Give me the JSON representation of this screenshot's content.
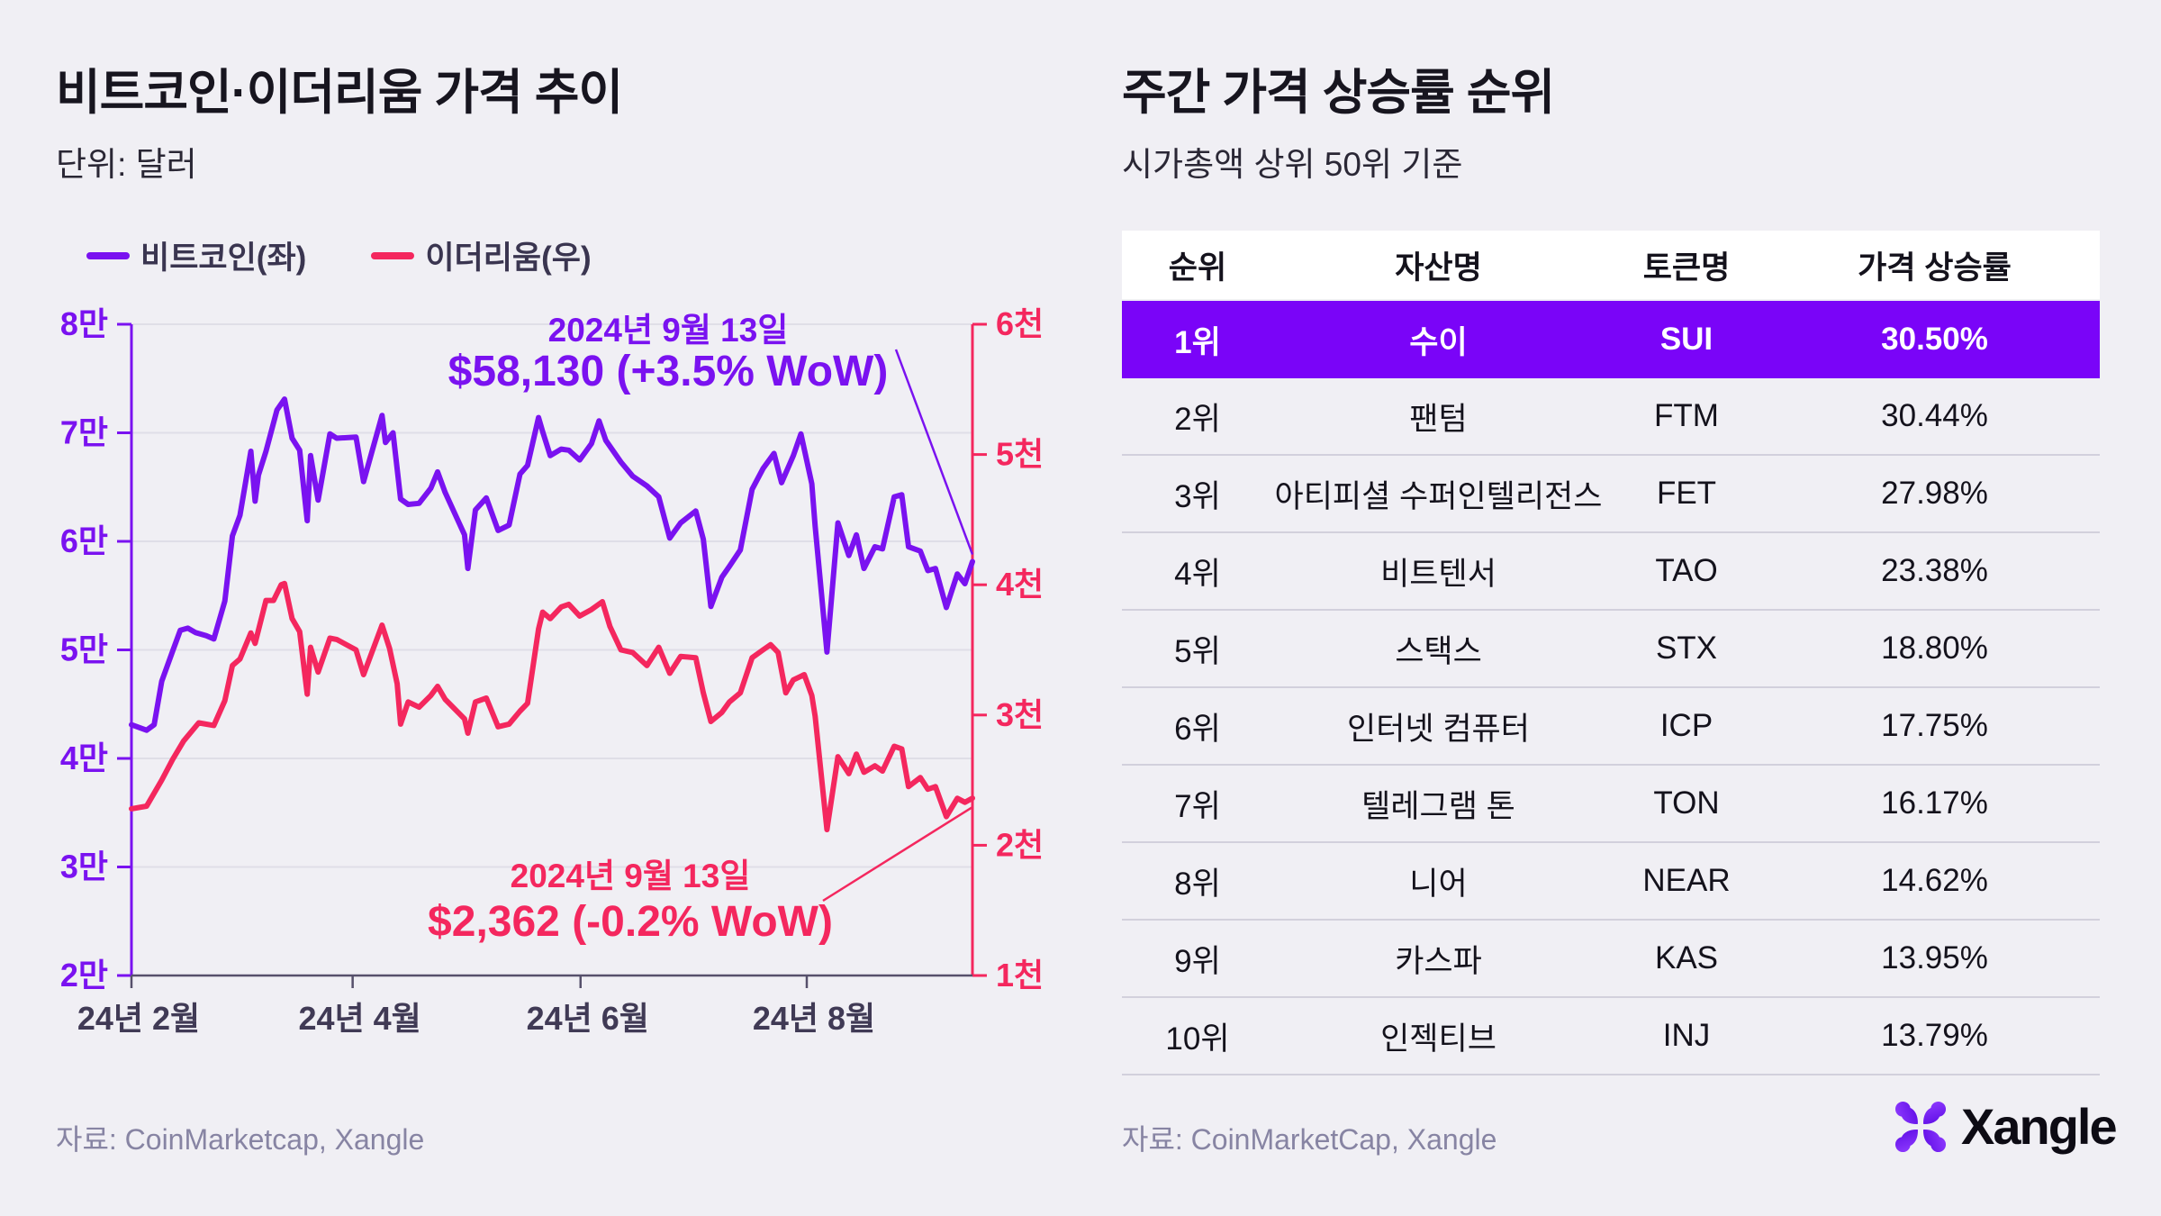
{
  "left_panel": {
    "title": "비트코인·이더리움 가격 추이",
    "subtitle": "단위: 달러",
    "legend": [
      {
        "label": "비트코인(좌)",
        "color": "#7A12F0"
      },
      {
        "label": "이더리움(우)",
        "color": "#F4275E"
      }
    ],
    "annotations": {
      "btc": {
        "date": "2024년 9월 13일",
        "value": "$58,130 (+3.5% WoW)"
      },
      "eth": {
        "date": "2024년 9월 13일",
        "value": "$2,362 (-0.2% WoW)"
      }
    },
    "source": "자료: CoinMarketcap, Xangle"
  },
  "right_panel": {
    "title": "주간 가격 상승률 순위",
    "subtitle": "시가총액 상위 50위 기준",
    "table": {
      "headers": [
        "순위",
        "자산명",
        "토큰명",
        "가격 상승률"
      ],
      "rows": [
        {
          "rank": "1위",
          "asset": "수이",
          "token": "SUI",
          "change": "30.50%",
          "highlight": true
        },
        {
          "rank": "2위",
          "asset": "팬텀",
          "token": "FTM",
          "change": "30.44%",
          "highlight": false
        },
        {
          "rank": "3위",
          "asset": "아티피셜 수퍼인텔리전스",
          "token": "FET",
          "change": "27.98%",
          "highlight": false
        },
        {
          "rank": "4위",
          "asset": "비트텐서",
          "token": "TAO",
          "change": "23.38%",
          "highlight": false
        },
        {
          "rank": "5위",
          "asset": "스택스",
          "token": "STX",
          "change": "18.80%",
          "highlight": false
        },
        {
          "rank": "6위",
          "asset": "인터넷 컴퓨터",
          "token": "ICP",
          "change": "17.75%",
          "highlight": false
        },
        {
          "rank": "7위",
          "asset": "텔레그램 톤",
          "token": "TON",
          "change": "16.17%",
          "highlight": false
        },
        {
          "rank": "8위",
          "asset": "니어",
          "token": "NEAR",
          "change": "14.62%",
          "highlight": false
        },
        {
          "rank": "9위",
          "asset": "카스파",
          "token": "KAS",
          "change": "13.95%",
          "highlight": false
        },
        {
          "rank": "10위",
          "asset": "인젝티브",
          "token": "INJ",
          "change": "13.79%",
          "highlight": false
        }
      ]
    },
    "source": "자료: CoinMarketCap, Xangle",
    "logo_text": "Xangle"
  },
  "colors": {
    "background": "#F0EFF4",
    "btc_purple": "#7A12F0",
    "eth_pink": "#F4275E",
    "highlight_row": "#7A04F8",
    "grid": "#DFDEE7",
    "axis_gray": "#56506B",
    "x_label": "#403A55"
  },
  "chart_data": {
    "type": "line",
    "title": "비트코인·이더리움 가격 추이",
    "unit_note": "단위: 달러",
    "legend_position": "top-left",
    "grid": "horizontal",
    "x_axis": {
      "tick_labels": [
        "24년 2월",
        "24년 4월",
        "24년 6월",
        "24년 8월"
      ],
      "tick_positions": [
        0,
        0.263,
        0.534,
        0.803
      ],
      "range": "2024-02-01 ~ 2024-09-13"
    },
    "y_left": {
      "series": "비트코인",
      "ticks": [
        "8만",
        "7만",
        "6만",
        "5만",
        "4만",
        "3만",
        "2만"
      ],
      "min": 20000,
      "max": 80000
    },
    "y_right": {
      "series": "이더리움",
      "ticks": [
        "6천",
        "5천",
        "4천",
        "3천",
        "2천",
        "1천"
      ],
      "min": 1000,
      "max": 6000
    },
    "series": [
      {
        "name": "비트코인(좌)",
        "axis": "left",
        "color": "#7A12F0",
        "points": [
          [
            0.0,
            43100
          ],
          [
            0.018,
            42600
          ],
          [
            0.027,
            43100
          ],
          [
            0.036,
            47100
          ],
          [
            0.049,
            49900
          ],
          [
            0.058,
            51800
          ],
          [
            0.067,
            52000
          ],
          [
            0.076,
            51600
          ],
          [
            0.089,
            51300
          ],
          [
            0.098,
            51000
          ],
          [
            0.111,
            54500
          ],
          [
            0.12,
            60500
          ],
          [
            0.129,
            62400
          ],
          [
            0.142,
            68300
          ],
          [
            0.147,
            63700
          ],
          [
            0.151,
            66100
          ],
          [
            0.16,
            68300
          ],
          [
            0.173,
            72100
          ],
          [
            0.182,
            73100
          ],
          [
            0.191,
            69500
          ],
          [
            0.2,
            68400
          ],
          [
            0.209,
            61900
          ],
          [
            0.213,
            67900
          ],
          [
            0.222,
            63800
          ],
          [
            0.236,
            69900
          ],
          [
            0.244,
            69500
          ],
          [
            0.267,
            69600
          ],
          [
            0.276,
            65500
          ],
          [
            0.298,
            71600
          ],
          [
            0.302,
            69100
          ],
          [
            0.311,
            70000
          ],
          [
            0.32,
            63900
          ],
          [
            0.329,
            63400
          ],
          [
            0.342,
            63500
          ],
          [
            0.356,
            64900
          ],
          [
            0.364,
            66400
          ],
          [
            0.373,
            64500
          ],
          [
            0.396,
            60600
          ],
          [
            0.4,
            57500
          ],
          [
            0.409,
            62900
          ],
          [
            0.422,
            64000
          ],
          [
            0.436,
            61000
          ],
          [
            0.449,
            61500
          ],
          [
            0.462,
            66200
          ],
          [
            0.471,
            67000
          ],
          [
            0.484,
            71400
          ],
          [
            0.489,
            70100
          ],
          [
            0.498,
            67900
          ],
          [
            0.511,
            68500
          ],
          [
            0.52,
            68400
          ],
          [
            0.533,
            67500
          ],
          [
            0.547,
            69000
          ],
          [
            0.556,
            71100
          ],
          [
            0.564,
            69300
          ],
          [
            0.582,
            67300
          ],
          [
            0.596,
            66000
          ],
          [
            0.613,
            65100
          ],
          [
            0.627,
            64100
          ],
          [
            0.64,
            60300
          ],
          [
            0.653,
            61700
          ],
          [
            0.671,
            62800
          ],
          [
            0.68,
            60200
          ],
          [
            0.689,
            54000
          ],
          [
            0.702,
            56700
          ],
          [
            0.711,
            57700
          ],
          [
            0.724,
            59200
          ],
          [
            0.738,
            64800
          ],
          [
            0.751,
            66700
          ],
          [
            0.764,
            68100
          ],
          [
            0.773,
            65400
          ],
          [
            0.787,
            67900
          ],
          [
            0.796,
            69900
          ],
          [
            0.809,
            65300
          ],
          [
            0.813,
            61400
          ],
          [
            0.827,
            49800
          ],
          [
            0.84,
            61700
          ],
          [
            0.853,
            58700
          ],
          [
            0.862,
            60600
          ],
          [
            0.871,
            57500
          ],
          [
            0.884,
            59500
          ],
          [
            0.893,
            59300
          ],
          [
            0.907,
            64100
          ],
          [
            0.916,
            64300
          ],
          [
            0.924,
            59500
          ],
          [
            0.938,
            59100
          ],
          [
            0.947,
            57300
          ],
          [
            0.956,
            57500
          ],
          [
            0.969,
            53900
          ],
          [
            0.982,
            57000
          ],
          [
            0.991,
            56100
          ],
          [
            1.0,
            58130
          ]
        ],
        "last_label": "$58,130 (+3.5% WoW)"
      },
      {
        "name": "이더리움(우)",
        "axis": "right",
        "color": "#F4275E",
        "points": [
          [
            0.0,
            2280
          ],
          [
            0.018,
            2300
          ],
          [
            0.036,
            2500
          ],
          [
            0.049,
            2660
          ],
          [
            0.062,
            2800
          ],
          [
            0.08,
            2940
          ],
          [
            0.098,
            2920
          ],
          [
            0.111,
            3110
          ],
          [
            0.12,
            3380
          ],
          [
            0.129,
            3430
          ],
          [
            0.142,
            3630
          ],
          [
            0.147,
            3550
          ],
          [
            0.16,
            3880
          ],
          [
            0.169,
            3880
          ],
          [
            0.178,
            4000
          ],
          [
            0.182,
            4010
          ],
          [
            0.191,
            3740
          ],
          [
            0.2,
            3640
          ],
          [
            0.209,
            3160
          ],
          [
            0.213,
            3520
          ],
          [
            0.222,
            3330
          ],
          [
            0.236,
            3590
          ],
          [
            0.244,
            3580
          ],
          [
            0.267,
            3500
          ],
          [
            0.276,
            3310
          ],
          [
            0.298,
            3690
          ],
          [
            0.307,
            3510
          ],
          [
            0.316,
            3240
          ],
          [
            0.32,
            2930
          ],
          [
            0.329,
            3100
          ],
          [
            0.342,
            3060
          ],
          [
            0.356,
            3150
          ],
          [
            0.364,
            3220
          ],
          [
            0.373,
            3120
          ],
          [
            0.396,
            2970
          ],
          [
            0.4,
            2860
          ],
          [
            0.409,
            3100
          ],
          [
            0.422,
            3130
          ],
          [
            0.436,
            2910
          ],
          [
            0.449,
            2930
          ],
          [
            0.462,
            3030
          ],
          [
            0.471,
            3090
          ],
          [
            0.484,
            3660
          ],
          [
            0.489,
            3790
          ],
          [
            0.498,
            3740
          ],
          [
            0.511,
            3830
          ],
          [
            0.52,
            3850
          ],
          [
            0.533,
            3760
          ],
          [
            0.547,
            3810
          ],
          [
            0.56,
            3870
          ],
          [
            0.569,
            3680
          ],
          [
            0.582,
            3500
          ],
          [
            0.596,
            3480
          ],
          [
            0.613,
            3380
          ],
          [
            0.627,
            3520
          ],
          [
            0.64,
            3320
          ],
          [
            0.653,
            3450
          ],
          [
            0.671,
            3440
          ],
          [
            0.68,
            3170
          ],
          [
            0.689,
            2950
          ],
          [
            0.702,
            3020
          ],
          [
            0.711,
            3100
          ],
          [
            0.724,
            3170
          ],
          [
            0.738,
            3440
          ],
          [
            0.751,
            3500
          ],
          [
            0.76,
            3540
          ],
          [
            0.769,
            3480
          ],
          [
            0.778,
            3170
          ],
          [
            0.787,
            3270
          ],
          [
            0.8,
            3310
          ],
          [
            0.809,
            3150
          ],
          [
            0.813,
            2990
          ],
          [
            0.827,
            2120
          ],
          [
            0.84,
            2680
          ],
          [
            0.853,
            2550
          ],
          [
            0.862,
            2700
          ],
          [
            0.871,
            2560
          ],
          [
            0.884,
            2610
          ],
          [
            0.893,
            2570
          ],
          [
            0.907,
            2760
          ],
          [
            0.916,
            2740
          ],
          [
            0.924,
            2450
          ],
          [
            0.938,
            2520
          ],
          [
            0.947,
            2430
          ],
          [
            0.956,
            2450
          ],
          [
            0.969,
            2220
          ],
          [
            0.982,
            2360
          ],
          [
            0.991,
            2330
          ],
          [
            1.0,
            2362
          ]
        ],
        "last_label": "$2,362 (-0.2% WoW)"
      }
    ]
  }
}
